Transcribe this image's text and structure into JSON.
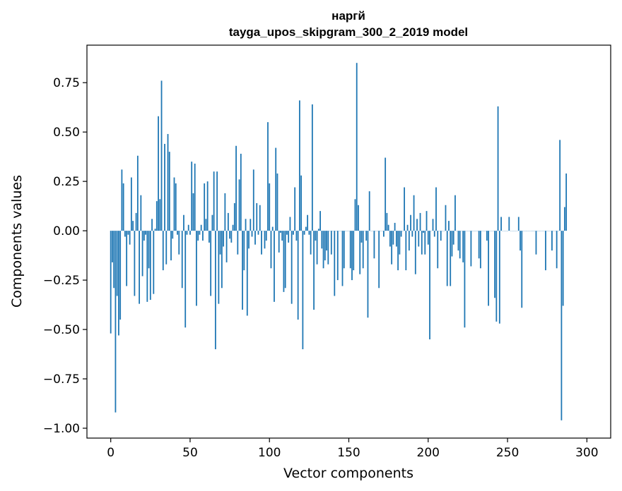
{
  "chart_data": {
    "type": "bar",
    "title_line1": "наргй",
    "title_line2": "tayga_upos_skipgram_300_2_2019 model",
    "xlabel": "Vector components",
    "ylabel": "Components values",
    "xlim": [
      -15,
      315
    ],
    "ylim": [
      -1.05,
      0.94
    ],
    "xticks": [
      0,
      50,
      100,
      150,
      200,
      250,
      300
    ],
    "xtick_labels": [
      "0",
      "50",
      "100",
      "150",
      "200",
      "250",
      "300"
    ],
    "yticks": [
      0.75,
      0.5,
      0.25,
      0.0,
      -0.25,
      -0.5,
      -0.75,
      -1.0
    ],
    "ytick_labels": [
      "0.75",
      "0.50",
      "0.25",
      "0.00",
      "−0.25",
      "−0.50",
      "−0.75",
      "−1.00"
    ],
    "bar_color": "#1f77b4",
    "grid": false,
    "values": [
      -0.52,
      -0.16,
      -0.29,
      -0.92,
      -0.33,
      -0.53,
      -0.45,
      0.31,
      0.24,
      -0.03,
      -0.28,
      -0.02,
      -0.07,
      0.27,
      0.05,
      -0.33,
      0.09,
      0.38,
      -0.37,
      0.18,
      -0.23,
      -0.05,
      -0.02,
      -0.36,
      -0.19,
      -0.35,
      0.06,
      -0.32,
      0.01,
      0.15,
      0.58,
      0.16,
      0.76,
      -0.2,
      0.44,
      -0.17,
      0.49,
      0.4,
      -0.15,
      -0.04,
      0.27,
      0.24,
      -0.02,
      -0.12,
      0.0,
      -0.29,
      0.08,
      -0.49,
      -0.02,
      0.03,
      -0.02,
      0.35,
      0.19,
      0.34,
      -0.38,
      -0.05,
      -0.02,
      0.03,
      -0.05,
      0.24,
      0.06,
      0.25,
      -0.06,
      -0.33,
      0.08,
      0.3,
      -0.6,
      0.3,
      -0.37,
      -0.12,
      -0.29,
      -0.08,
      0.19,
      -0.16,
      0.09,
      -0.04,
      -0.06,
      0.03,
      0.14,
      0.43,
      -0.12,
      0.26,
      0.39,
      -0.4,
      -0.2,
      0.06,
      -0.43,
      -0.09,
      0.06,
      -0.03,
      0.31,
      -0.07,
      0.14,
      -0.02,
      0.13,
      -0.12,
      0.0,
      -0.09,
      -0.05,
      0.55,
      0.24,
      -0.19,
      0.02,
      -0.36,
      0.42,
      0.29,
      -0.11,
      -0.01,
      -0.05,
      -0.31,
      -0.29,
      -0.02,
      -0.06,
      0.07,
      -0.37,
      -0.02,
      0.22,
      -0.05,
      -0.45,
      0.66,
      0.28,
      -0.6,
      -0.02,
      0.02,
      0.08,
      -0.02,
      -0.12,
      0.64,
      -0.4,
      -0.05,
      -0.17,
      0.01,
      0.1,
      -0.09,
      -0.19,
      -0.15,
      -0.1,
      -0.17,
      0.0,
      -0.12,
      0.0,
      -0.33,
      0.0,
      -0.25,
      0.0,
      0.0,
      -0.28,
      -0.19,
      0.0,
      0.0,
      0.0,
      -0.19,
      -0.25,
      -0.2,
      0.16,
      0.85,
      0.13,
      -0.22,
      -0.06,
      -0.19,
      0.0,
      -0.05,
      -0.44,
      0.2,
      0.0,
      0.0,
      -0.14,
      0.0,
      0.0,
      -0.29,
      0.0,
      0.0,
      -0.03,
      0.37,
      0.09,
      0.03,
      -0.08,
      -0.17,
      -0.07,
      0.04,
      -0.08,
      -0.2,
      -0.12,
      -0.03,
      0.0,
      0.22,
      -0.2,
      0.03,
      -0.1,
      0.08,
      -0.03,
      0.18,
      -0.22,
      0.06,
      -0.08,
      0.09,
      -0.12,
      -0.01,
      -0.12,
      0.1,
      -0.07,
      -0.55,
      0.0,
      0.06,
      -0.03,
      0.22,
      -0.19,
      0.0,
      -0.05,
      0.0,
      0.0,
      0.13,
      -0.28,
      0.05,
      -0.28,
      -0.13,
      -0.07,
      0.18,
      0.0,
      -0.1,
      -0.14,
      0.0,
      -0.16,
      -0.49,
      0.0,
      0.0,
      0.0,
      -0.18,
      0.0,
      0.0,
      0.0,
      0.0,
      -0.14,
      -0.19,
      0.0,
      0.0,
      0.0,
      -0.05,
      -0.38,
      0.0,
      0.0,
      0.0,
      -0.34,
      -0.46,
      0.63,
      -0.47,
      0.07,
      0.0,
      0.0,
      0.0,
      0.0,
      0.07,
      0.0,
      0.0,
      0.0,
      0.0,
      0.0,
      0.07,
      -0.1,
      -0.39,
      0.0,
      0.0,
      0.0,
      0.0,
      0.0,
      0.0,
      0.0,
      0.0,
      -0.12,
      0.0,
      0.0,
      0.0,
      0.0,
      0.0,
      -0.2,
      0.0,
      0.0,
      0.0,
      -0.1,
      0.0,
      0.0,
      -0.19,
      0.0,
      0.46,
      -0.96,
      -0.38,
      0.12,
      0.29
    ]
  }
}
